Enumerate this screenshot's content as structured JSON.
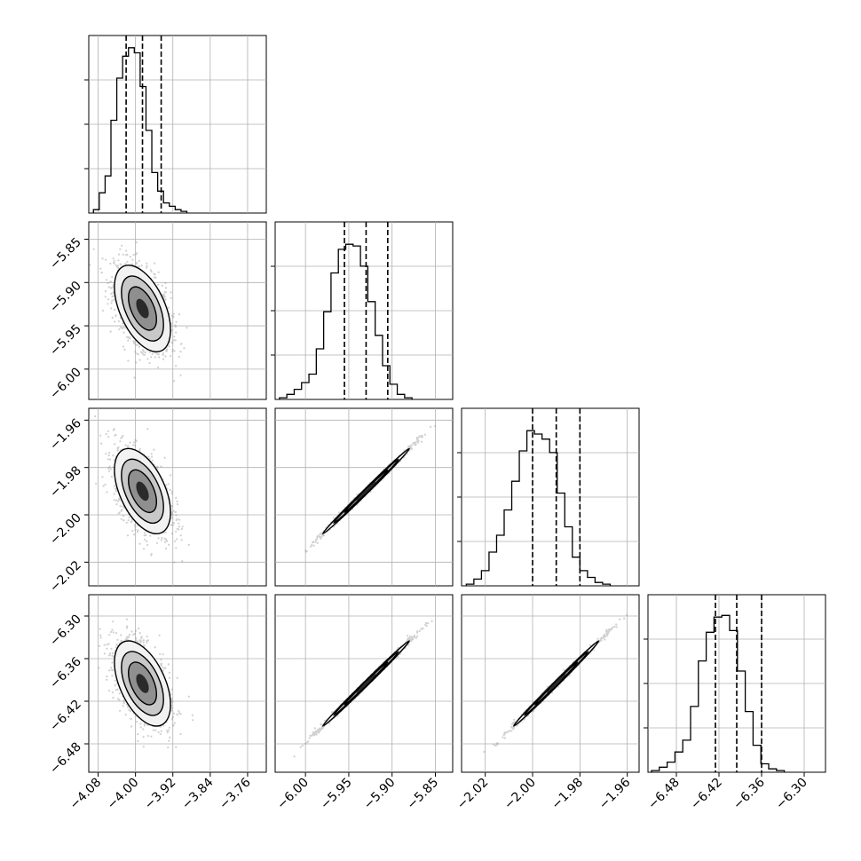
{
  "chart_data": {
    "type": "corner",
    "parameters": 4,
    "grid": true,
    "colors": {
      "line": "#000000",
      "grid": "#b0b0b0",
      "points": "#9a9a9a"
    },
    "histograms": [
      {
        "param": 1,
        "xlim": [
          -4.1,
          -3.72
        ],
        "bin_start": -4.09,
        "bin_width": 0.0125,
        "counts": [
          2,
          12,
          22,
          55,
          80,
          93,
          98,
          95,
          75,
          49,
          24,
          13,
          6,
          4,
          2,
          1
        ],
        "ymax": 100,
        "quantiles": [
          -4.02,
          -3.985,
          -3.945
        ]
      },
      {
        "param": 2,
        "xlim": [
          -6.035,
          -5.83
        ],
        "bin_start": -6.03,
        "bin_width": 0.0085,
        "counts": [
          1,
          3,
          6,
          10,
          15,
          30,
          52,
          75,
          89,
          92,
          91,
          79,
          58,
          38,
          20,
          9,
          3,
          1
        ],
        "ymax": 100,
        "quantiles": [
          -5.955,
          -5.93,
          -5.905
        ]
      },
      {
        "param": 3,
        "xlim": [
          -2.03,
          -1.955
        ],
        "bin_start": -2.028,
        "bin_width": 0.0032,
        "counts": [
          1,
          4,
          9,
          20,
          30,
          45,
          62,
          80,
          92,
          90,
          87,
          79,
          55,
          35,
          17,
          9,
          5,
          2,
          1
        ],
        "ymax": 100,
        "quantiles": [
          -2.0,
          -1.99,
          -1.98
        ]
      },
      {
        "param": 4,
        "xlim": [
          -6.52,
          -6.27
        ],
        "bin_start": -6.515,
        "bin_width": 0.011,
        "counts": [
          1,
          3,
          6,
          12,
          19,
          39,
          66,
          83,
          92,
          93,
          84,
          60,
          36,
          16,
          5,
          2,
          1
        ],
        "ymax": 100,
        "quantiles": [
          -6.425,
          -6.395,
          -6.36
        ]
      }
    ],
    "scatter_panels": [
      {
        "row": 2,
        "col": 1,
        "center": [
          -3.985,
          -5.93
        ],
        "spread": [
          0.03,
          0.025
        ],
        "rho": -0.5,
        "extent": [
          0.12,
          0.1
        ]
      },
      {
        "row": 3,
        "col": 1,
        "center": [
          -3.985,
          -1.99
        ],
        "spread": [
          0.03,
          0.009
        ],
        "rho": -0.5,
        "extent": [
          0.12,
          0.035
        ]
      },
      {
        "row": 3,
        "col": 2,
        "center": [
          -5.93,
          -1.99
        ],
        "spread": [
          0.025,
          0.009
        ],
        "rho": 0.997,
        "extent": [
          0.1,
          0.035
        ]
      },
      {
        "row": 4,
        "col": 1,
        "center": [
          -3.985,
          -6.395
        ],
        "spread": [
          0.03,
          0.03
        ],
        "rho": -0.5,
        "extent": [
          0.12,
          0.12
        ]
      },
      {
        "row": 4,
        "col": 2,
        "center": [
          -5.93,
          -6.395
        ],
        "spread": [
          0.025,
          0.03
        ],
        "rho": 0.997,
        "extent": [
          0.1,
          0.12
        ]
      },
      {
        "row": 4,
        "col": 3,
        "center": [
          -1.99,
          -6.395
        ],
        "spread": [
          0.009,
          0.03
        ],
        "rho": 0.997,
        "extent": [
          0.035,
          0.12
        ]
      }
    ],
    "x_ticks": [
      [
        "−4.08",
        "−4.00",
        "−3.92",
        "−3.84",
        "−3.76"
      ],
      [
        "−6.00",
        "−5.95",
        "−5.90",
        "−5.85"
      ],
      [
        "−2.02",
        "−2.00",
        "−1.98",
        "−1.96"
      ],
      [
        "−6.48",
        "−6.42",
        "−6.36",
        "−6.30"
      ]
    ],
    "x_tick_values": [
      [
        -4.08,
        -4.0,
        -3.92,
        -3.84,
        -3.76
      ],
      [
        -6.0,
        -5.95,
        -5.9,
        -5.85
      ],
      [
        -2.02,
        -2.0,
        -1.98,
        -1.96
      ],
      [
        -6.48,
        -6.42,
        -6.36,
        -6.3
      ]
    ],
    "y_ticks": {
      "row2": [
        "−5.85",
        "−5.90",
        "−5.95",
        "−6.00"
      ],
      "row3": [
        "−1.96",
        "−1.98",
        "−2.00",
        "−2.02"
      ],
      "row4": [
        "−6.30",
        "−6.36",
        "−6.42",
        "−6.48"
      ]
    },
    "y_tick_values": {
      "row2": [
        -5.85,
        -5.9,
        -5.95,
        -6.0
      ],
      "row3": [
        -1.96,
        -1.98,
        -2.0,
        -2.02
      ],
      "row4": [
        -6.3,
        -6.36,
        -6.42,
        -6.48
      ]
    }
  }
}
